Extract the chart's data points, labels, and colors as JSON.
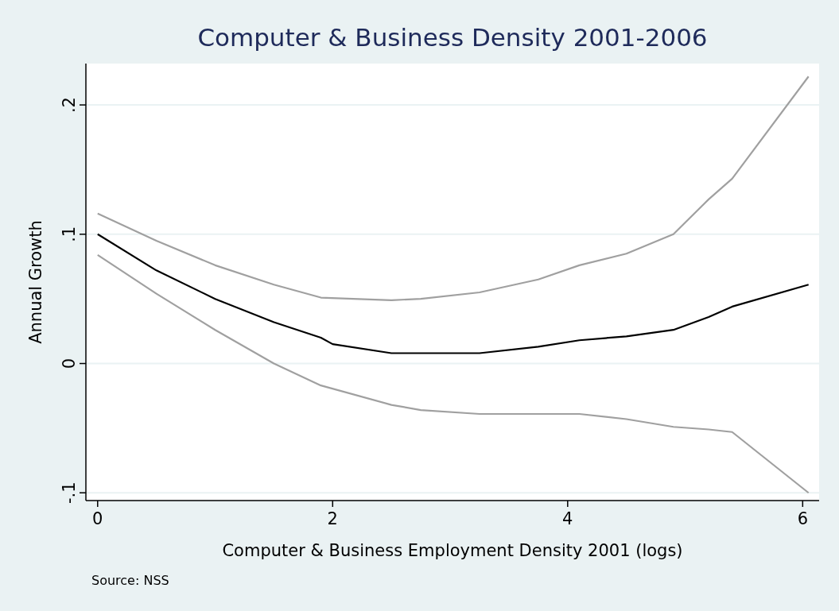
{
  "chart_data": {
    "type": "line",
    "title": "Computer & Business Density 2001-2006",
    "xlabel": "Computer & Business Employment Density 2001 (logs)",
    "ylabel": "Annual Growth",
    "annotations": [
      "Source: NSS"
    ],
    "xlim": [
      -0.1,
      6.14
    ],
    "ylim": [
      -0.106,
      0.232
    ],
    "xticks": [
      0,
      2,
      4,
      6
    ],
    "yticks": [
      {
        "value": -0.1,
        "label": "-.1"
      },
      {
        "value": 0,
        "label": "0"
      },
      {
        "value": 0.1,
        "label": ".1"
      },
      {
        "value": 0.2,
        "label": ".2"
      }
    ],
    "grid": "y",
    "line_style": "solid",
    "marker": "none",
    "series": [
      {
        "color": "#a0a0a0",
        "x": [
          0,
          0.5,
          1,
          1.5,
          1.9,
          2.5,
          2.75,
          3.25,
          3.75,
          4.1,
          4.5,
          4.9,
          5.2,
          5.4,
          6.05
        ],
        "values": [
          0.116,
          0.095,
          0.076,
          0.061,
          0.051,
          0.049,
          0.05,
          0.055,
          0.065,
          0.076,
          0.085,
          0.1,
          0.127,
          0.143,
          0.222
        ]
      },
      {
        "color": "#000000",
        "x": [
          0,
          0.5,
          1,
          1.5,
          1.9,
          2,
          2.5,
          3.25,
          3.75,
          4.1,
          4.5,
          4.9,
          5.2,
          5.4,
          6.05
        ],
        "values": [
          0.1,
          0.072,
          0.05,
          0.032,
          0.02,
          0.015,
          0.008,
          0.008,
          0.013,
          0.018,
          0.021,
          0.026,
          0.036,
          0.044,
          0.061
        ]
      },
      {
        "color": "#a0a0a0",
        "x": [
          0,
          0.5,
          1,
          1.5,
          1.9,
          2.5,
          2.75,
          3.25,
          4.1,
          4.5,
          4.9,
          5.2,
          5.4,
          6.05
        ],
        "values": [
          0.084,
          0.054,
          0.026,
          0.0,
          -0.017,
          -0.032,
          -0.036,
          -0.039,
          -0.039,
          -0.043,
          -0.049,
          -0.051,
          -0.053,
          -0.1
        ]
      }
    ]
  }
}
